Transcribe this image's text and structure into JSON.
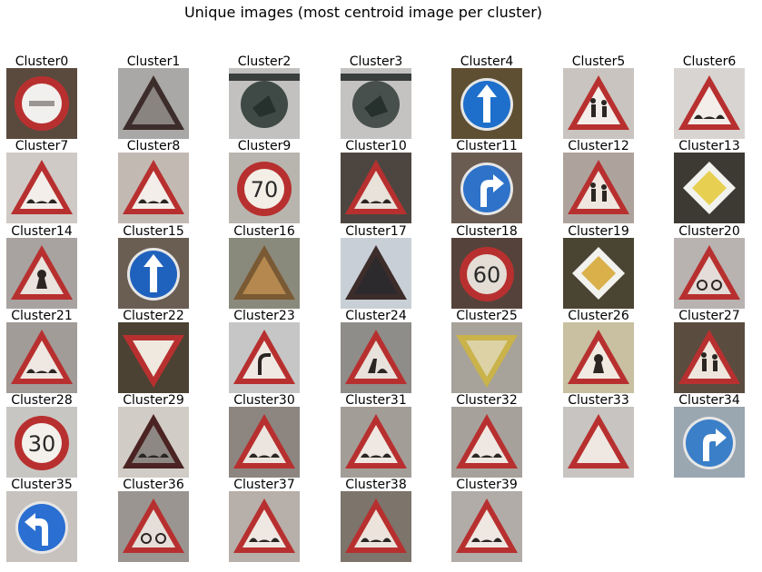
{
  "title": "Unique images (most centroid image per cluster)",
  "clusters": [
    {
      "label": "Cluster0",
      "bg": "#5a4a3e",
      "sign": "noentry",
      "sym": "",
      "fg": "#f2f0ee"
    },
    {
      "label": "Cluster1",
      "bg": "#a9a8a6",
      "sign": "tri-dark",
      "sym": "",
      "fg": "#8a8480"
    },
    {
      "label": "Cluster2",
      "bg": "#c2c1bf",
      "sign": "dim-circle",
      "sym": "",
      "fg": "#3f4a46"
    },
    {
      "label": "Cluster3",
      "bg": "#c4c3c1",
      "sign": "dim-circle",
      "sym": "",
      "fg": "#47504d"
    },
    {
      "label": "Cluster4",
      "bg": "#5e4f33",
      "sign": "blue-up",
      "sym": "",
      "fg": "#1d6fcb"
    },
    {
      "label": "Cluster5",
      "bg": "#c9c4bf",
      "sign": "tri",
      "sym": "kids",
      "fg": "#f4eeea"
    },
    {
      "label": "Cluster6",
      "bg": "#d8d4d1",
      "sign": "tri",
      "sym": "bump",
      "fg": "#f4eeea"
    },
    {
      "label": "Cluster7",
      "bg": "#cfcac6",
      "sign": "tri",
      "sym": "bump",
      "fg": "#f4eeea"
    },
    {
      "label": "Cluster8",
      "bg": "#c3b9b3",
      "sign": "tri",
      "sym": "bump",
      "fg": "#f4eeea"
    },
    {
      "label": "Cluster9",
      "bg": "#b8b5ae",
      "sign": "speed",
      "sym": "70",
      "fg": "#f3efe6"
    },
    {
      "label": "Cluster10",
      "bg": "#4d4640",
      "sign": "tri",
      "sym": "bump",
      "fg": "#e8e2da"
    },
    {
      "label": "Cluster11",
      "bg": "#6b5c52",
      "sign": "blue-turn",
      "sym": "",
      "fg": "#2e73c9"
    },
    {
      "label": "Cluster12",
      "bg": "#aea39c",
      "sign": "tri",
      "sym": "kids",
      "fg": "#efe6df"
    },
    {
      "label": "Cluster13",
      "bg": "#3c3a33",
      "sign": "diamond",
      "sym": "",
      "fg": "#e7cf52"
    },
    {
      "label": "Cluster14",
      "bg": "#a8a3a0",
      "sign": "tri",
      "sym": "dot",
      "fg": "#e9e2dd"
    },
    {
      "label": "Cluster15",
      "bg": "#6a5e53",
      "sign": "blue-up",
      "sym": "",
      "fg": "#1f62bd"
    },
    {
      "label": "Cluster16",
      "bg": "#8a8a7c",
      "sign": "tri-brown",
      "sym": "",
      "fg": "#b5884f"
    },
    {
      "label": "Cluster17",
      "bg": "#c9cfd6",
      "sign": "tri-dark",
      "sym": "",
      "fg": "#2c2a2c"
    },
    {
      "label": "Cluster18",
      "bg": "#55433b",
      "sign": "speed",
      "sym": "60",
      "fg": "#e4ddd5"
    },
    {
      "label": "Cluster19",
      "bg": "#4a4433",
      "sign": "diamond",
      "sym": "",
      "fg": "#d9b04a"
    },
    {
      "label": "Cluster20",
      "bg": "#b8b2b0",
      "sign": "tri",
      "sym": "bike",
      "fg": "#e3dcd8"
    },
    {
      "label": "Cluster21",
      "bg": "#a19c98",
      "sign": "tri",
      "sym": "bump",
      "fg": "#efe8e2"
    },
    {
      "label": "Cluster22",
      "bg": "#4b4233",
      "sign": "yield",
      "sym": "",
      "fg": "#efe9df"
    },
    {
      "label": "Cluster23",
      "bg": "#c7c6c6",
      "sign": "tri",
      "sym": "curve",
      "fg": "#efe8e3"
    },
    {
      "label": "Cluster24",
      "bg": "#8f8d89",
      "sign": "tri",
      "sym": "work",
      "fg": "#e8e2dc"
    },
    {
      "label": "Cluster25",
      "bg": "#a7a29a",
      "sign": "yield-y",
      "sym": "",
      "fg": "#dcd2a6"
    },
    {
      "label": "Cluster26",
      "bg": "#c8c0a0",
      "sign": "tri",
      "sym": "dot",
      "fg": "#f1eae3"
    },
    {
      "label": "Cluster27",
      "bg": "#5a4c3f",
      "sign": "tri",
      "sym": "kids",
      "fg": "#eee6dd"
    },
    {
      "label": "Cluster28",
      "bg": "#c8c6c3",
      "sign": "speed",
      "sym": "30",
      "fg": "#f4f1ec"
    },
    {
      "label": "Cluster29",
      "bg": "#d1ccc6",
      "sign": "tri-dark2",
      "sym": "bump",
      "fg": "#8d8883"
    },
    {
      "label": "Cluster30",
      "bg": "#8c8580",
      "sign": "tri",
      "sym": "bump",
      "fg": "#ece5df"
    },
    {
      "label": "Cluster31",
      "bg": "#a39d98",
      "sign": "tri",
      "sym": "bump",
      "fg": "#efe8e2"
    },
    {
      "label": "Cluster32",
      "bg": "#a7a19c",
      "sign": "tri",
      "sym": "bump",
      "fg": "#efe8e2"
    },
    {
      "label": "Cluster33",
      "bg": "#c7c4c1",
      "sign": "tri",
      "sym": "",
      "fg": "#efe8e2"
    },
    {
      "label": "Cluster34",
      "bg": "#9aa6b0",
      "sign": "blue-turn",
      "sym": "",
      "fg": "#3a7fc8"
    },
    {
      "label": "Cluster35",
      "bg": "#c7c2bd",
      "sign": "blue-left",
      "sym": "",
      "fg": "#2a6fd1"
    },
    {
      "label": "Cluster36",
      "bg": "#9a9590",
      "sign": "tri",
      "sym": "bike",
      "fg": "#e6dfd9"
    },
    {
      "label": "Cluster37",
      "bg": "#b7afa9",
      "sign": "tri",
      "sym": "bump",
      "fg": "#efe8e2"
    },
    {
      "label": "Cluster38",
      "bg": "#7d746c",
      "sign": "tri",
      "sym": "bump",
      "fg": "#ece4dc"
    },
    {
      "label": "Cluster39",
      "bg": "#b2aca8",
      "sign": "tri",
      "sym": "bump",
      "fg": "#efe8e2"
    }
  ]
}
